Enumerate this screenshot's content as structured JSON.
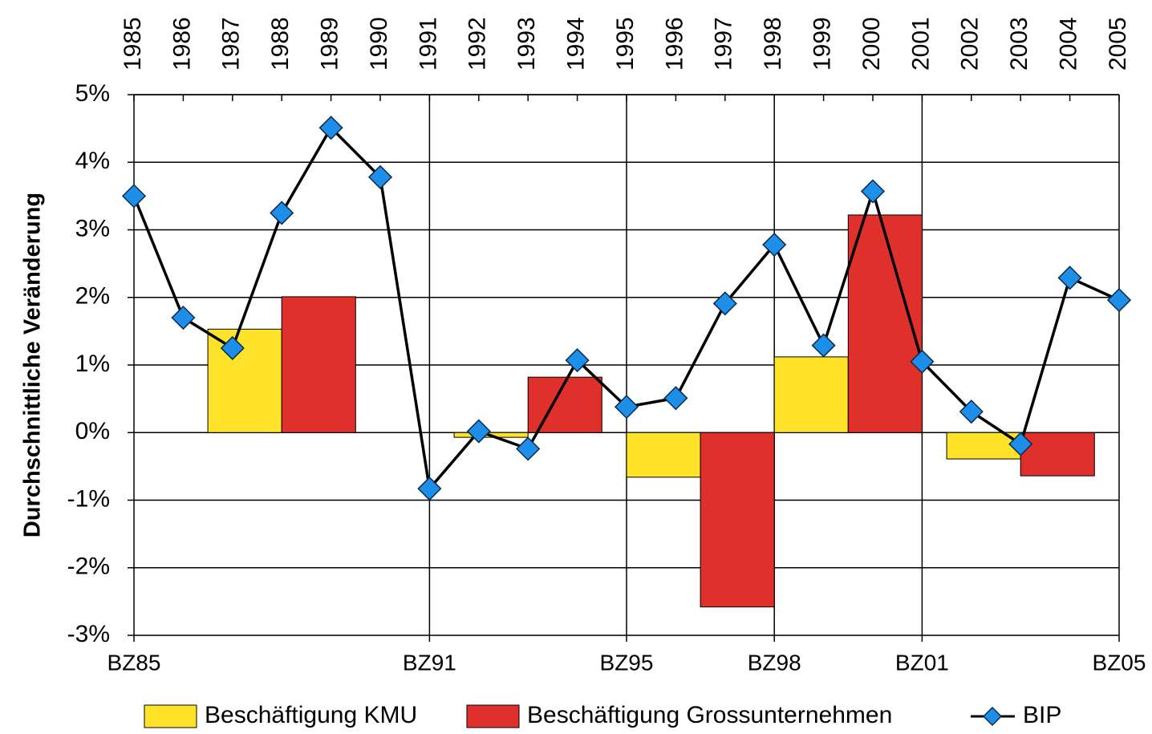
{
  "chart_data": {
    "type": "combo",
    "y_label": "Durchschnittliche Veränderung",
    "xlim": [
      1985,
      2005
    ],
    "xticks": [
      1985,
      1986,
      1987,
      1988,
      1989,
      1990,
      1991,
      1992,
      1993,
      1994,
      1995,
      1996,
      1997,
      1998,
      1999,
      2000,
      2001,
      2002,
      2003,
      2004,
      2005
    ],
    "ylim": [
      -3,
      5
    ],
    "yticks": [
      {
        "value": -3,
        "label": "-3%"
      },
      {
        "value": -2,
        "label": "-2%"
      },
      {
        "value": -1,
        "label": "-1%"
      },
      {
        "value": 0,
        "label": "0%"
      },
      {
        "value": 1,
        "label": "1%"
      },
      {
        "value": 2,
        "label": "2%"
      },
      {
        "value": 3,
        "label": "3%"
      },
      {
        "value": 4,
        "label": "4%"
      },
      {
        "value": 5,
        "label": "5%"
      }
    ],
    "grid": true,
    "periods": [
      {
        "value": 1985,
        "label": "BZ85"
      },
      {
        "value": 1991,
        "label": "BZ91"
      },
      {
        "value": 1995,
        "label": "BZ95"
      },
      {
        "value": 1998,
        "label": "BZ98"
      },
      {
        "value": 2001,
        "label": "BZ01"
      },
      {
        "value": 2005,
        "label": "BZ05"
      }
    ],
    "bar_series": [
      {
        "name": "Beschäftigung KMU",
        "color": "#ffe32a",
        "values": [
          1.53,
          -0.07,
          -0.66,
          1.12,
          -0.39
        ]
      },
      {
        "name": "Beschäftigung Grossunternehmen",
        "color": "#e0302b",
        "values": [
          2.01,
          0.82,
          -2.58,
          3.22,
          -0.64
        ]
      }
    ],
    "line_series": {
      "name": "BIP",
      "color": "#1e8fe8",
      "x": [
        1985,
        1986,
        1987,
        1988,
        1989,
        1990,
        1991,
        1992,
        1993,
        1994,
        1995,
        1996,
        1997,
        1998,
        1999,
        2000,
        2001,
        2002,
        2003,
        2004,
        2005
      ],
      "values": [
        3.5,
        1.7,
        1.25,
        3.25,
        4.51,
        3.78,
        -0.83,
        0.02,
        -0.24,
        1.07,
        0.38,
        0.51,
        1.91,
        2.78,
        1.29,
        3.57,
        1.05,
        0.31,
        -0.17,
        2.29,
        1.96
      ]
    },
    "legend": "bottom"
  }
}
